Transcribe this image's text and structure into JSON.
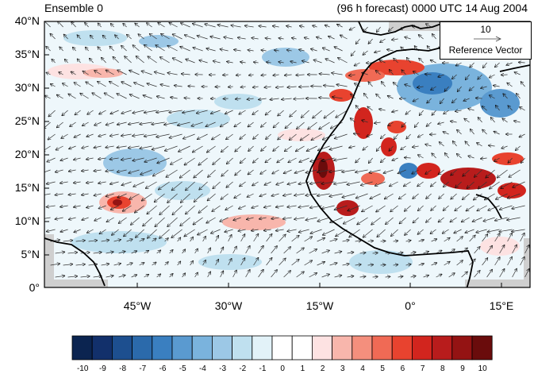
{
  "titles": {
    "left": "Ensemble 0",
    "right": "(96 h forecast) 0000 UTC 14 Aug 2004"
  },
  "axes": {
    "lat_labels": [
      "40°N",
      "35°N",
      "30°N",
      "25°N",
      "20°N",
      "15°N",
      "10°N",
      "5°N",
      "0°"
    ],
    "lon_labels": [
      "45°W",
      "30°W",
      "15°W",
      "0°",
      "15°E"
    ]
  },
  "reference_vector": {
    "magnitude": "10",
    "label": "Reference Vector"
  },
  "colorbar": {
    "labels": [
      "-10",
      "-9",
      "-8",
      "-7",
      "-6",
      "-5",
      "-4",
      "-3",
      "-2",
      "-1",
      "0",
      "1",
      "2",
      "3",
      "4",
      "5",
      "6",
      "7",
      "8",
      "9",
      "10"
    ],
    "colors": [
      "#0b2450",
      "#12306b",
      "#1d4f8f",
      "#2b6aab",
      "#3a7fc0",
      "#5a9ad0",
      "#7ab3dd",
      "#9cc8e6",
      "#bfe0ef",
      "#e2f2f8",
      "#ffffff",
      "#ffffff",
      "#fde2e2",
      "#f8b6ac",
      "#f48f7d",
      "#f06a55",
      "#e8432f",
      "#d2251e",
      "#b81c1c",
      "#941313",
      "#6a0c0c"
    ]
  },
  "colors": {
    "coast": "#000000",
    "missing": "#cfcfcf"
  }
}
